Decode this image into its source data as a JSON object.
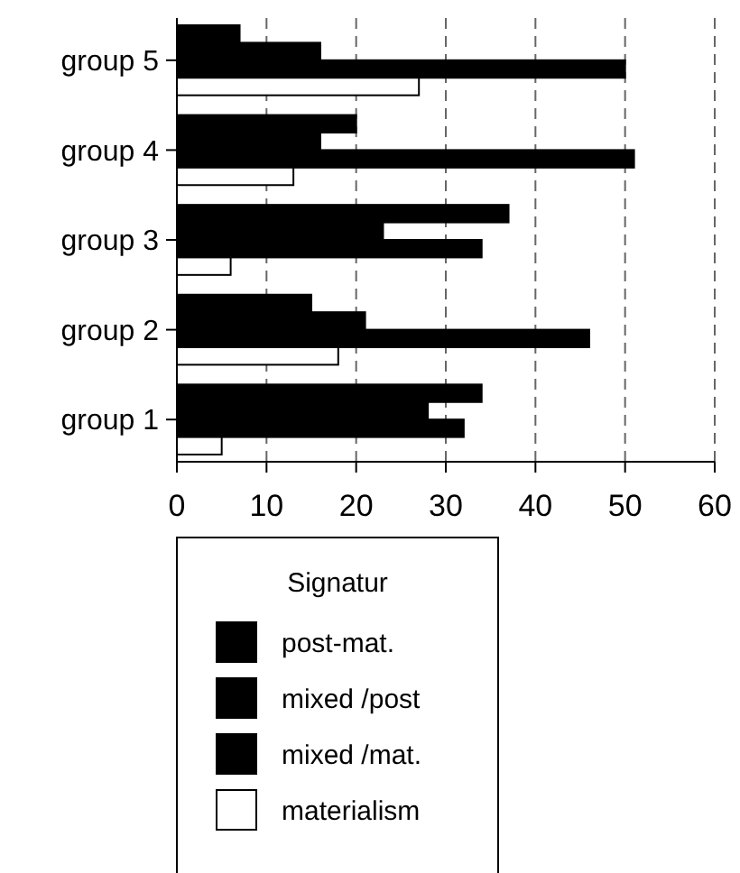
{
  "chart_data": {
    "type": "bar",
    "orientation": "horizontal",
    "categories": [
      "group 5",
      "group 4",
      "group 3",
      "group 2",
      "group 1"
    ],
    "series": [
      {
        "name": "post-mat.",
        "color": "#000000",
        "values": [
          7,
          20,
          37,
          15,
          34
        ]
      },
      {
        "name": "mixed /post",
        "color": "#000000",
        "values": [
          16,
          16,
          23,
          21,
          28
        ]
      },
      {
        "name": "mixed /mat.",
        "color": "#000000",
        "values": [
          50,
          51,
          34,
          46,
          32
        ]
      },
      {
        "name": "materialism",
        "color": "#ffffff",
        "values": [
          27,
          13,
          6,
          18,
          5
        ]
      }
    ],
    "xlim": [
      0,
      60
    ],
    "xticks": [
      0,
      10,
      20,
      30,
      40,
      50,
      60
    ],
    "grid": "x",
    "legend": "bottom",
    "legend_title": "Signatur"
  }
}
